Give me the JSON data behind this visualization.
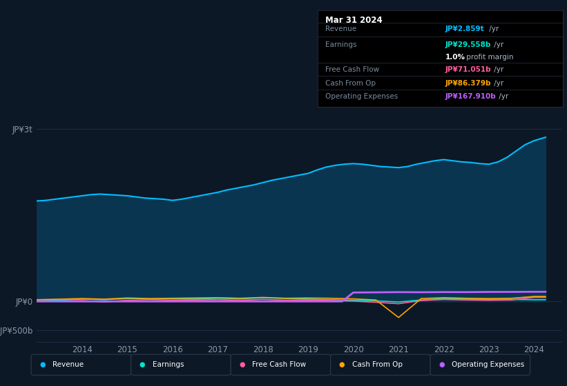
{
  "background_color": "#0d1827",
  "plot_bg_color": "#0d1827",
  "title_box": {
    "date": "Mar 31 2024",
    "rows": [
      {
        "label": "Revenue",
        "value": "JP¥2.859t",
        "suffix": " /yr",
        "value_color": "#00bfff"
      },
      {
        "label": "Earnings",
        "value": "JP¥29.558b",
        "suffix": " /yr",
        "value_color": "#00e5cc"
      },
      {
        "label": "",
        "value": "1.0%",
        "suffix": " profit margin",
        "value_color": "#ffffff"
      },
      {
        "label": "Free Cash Flow",
        "value": "JP¥71.051b",
        "suffix": " /yr",
        "value_color": "#ff5fa0"
      },
      {
        "label": "Cash From Op",
        "value": "JP¥86.379b",
        "suffix": " /yr",
        "value_color": "#ffa500"
      },
      {
        "label": "Operating Expenses",
        "value": "JP¥167.910b",
        "suffix": " /yr",
        "value_color": "#bf5fff"
      }
    ]
  },
  "ytick_labels": [
    "JP¥3t",
    "JP¥0",
    "-JP¥500b"
  ],
  "ytick_values": [
    3000000000000,
    0,
    -500000000000
  ],
  "ylim_min": -700000000000,
  "ylim_max": 3300000000000,
  "xlim_min": 2013.0,
  "xlim_max": 2024.6,
  "xticks": [
    2014,
    2015,
    2016,
    2017,
    2018,
    2019,
    2020,
    2021,
    2022,
    2023,
    2024
  ],
  "legend": [
    {
      "label": "Revenue",
      "color": "#00bfff"
    },
    {
      "label": "Earnings",
      "color": "#00e5cc"
    },
    {
      "label": "Free Cash Flow",
      "color": "#ff5fa0"
    },
    {
      "label": "Cash From Op",
      "color": "#ffa500"
    },
    {
      "label": "Operating Expenses",
      "color": "#bf5fff"
    }
  ],
  "revenue_x": [
    2013.0,
    2013.2,
    2013.4,
    2013.6,
    2013.8,
    2014.0,
    2014.2,
    2014.4,
    2014.6,
    2014.8,
    2015.0,
    2015.2,
    2015.4,
    2015.6,
    2015.8,
    2016.0,
    2016.2,
    2016.4,
    2016.6,
    2016.8,
    2017.0,
    2017.2,
    2017.4,
    2017.6,
    2017.8,
    2018.0,
    2018.2,
    2018.4,
    2018.6,
    2018.8,
    2019.0,
    2019.2,
    2019.4,
    2019.6,
    2019.8,
    2020.0,
    2020.2,
    2020.4,
    2020.6,
    2020.8,
    2021.0,
    2021.2,
    2021.4,
    2021.6,
    2021.8,
    2022.0,
    2022.2,
    2022.4,
    2022.6,
    2022.8,
    2023.0,
    2023.2,
    2023.4,
    2023.6,
    2023.8,
    2024.0,
    2024.25
  ],
  "revenue_y": [
    1750000000000,
    1760000000000,
    1780000000000,
    1800000000000,
    1820000000000,
    1840000000000,
    1860000000000,
    1870000000000,
    1860000000000,
    1850000000000,
    1840000000000,
    1820000000000,
    1800000000000,
    1790000000000,
    1780000000000,
    1760000000000,
    1780000000000,
    1810000000000,
    1840000000000,
    1870000000000,
    1900000000000,
    1940000000000,
    1970000000000,
    2000000000000,
    2030000000000,
    2070000000000,
    2110000000000,
    2140000000000,
    2170000000000,
    2200000000000,
    2230000000000,
    2290000000000,
    2340000000000,
    2370000000000,
    2390000000000,
    2400000000000,
    2390000000000,
    2370000000000,
    2350000000000,
    2340000000000,
    2330000000000,
    2350000000000,
    2390000000000,
    2420000000000,
    2450000000000,
    2470000000000,
    2450000000000,
    2430000000000,
    2420000000000,
    2400000000000,
    2390000000000,
    2430000000000,
    2510000000000,
    2620000000000,
    2730000000000,
    2800000000000,
    2859000000000
  ],
  "earnings_x": [
    2013.0,
    2013.5,
    2014.0,
    2014.5,
    2015.0,
    2015.5,
    2016.0,
    2016.5,
    2017.0,
    2017.5,
    2018.0,
    2018.5,
    2019.0,
    2019.5,
    2020.0,
    2020.5,
    2021.0,
    2021.5,
    2022.0,
    2022.5,
    2023.0,
    2023.5,
    2024.0,
    2024.25
  ],
  "earnings_y": [
    30000000000,
    20000000000,
    40000000000,
    30000000000,
    50000000000,
    35000000000,
    45000000000,
    40000000000,
    55000000000,
    45000000000,
    65000000000,
    50000000000,
    40000000000,
    30000000000,
    20000000000,
    10000000000,
    -10000000000,
    25000000000,
    50000000000,
    40000000000,
    30000000000,
    35000000000,
    29558000000,
    29558000000
  ],
  "fcf_x": [
    2013.0,
    2013.5,
    2014.0,
    2014.5,
    2015.0,
    2015.5,
    2016.0,
    2016.5,
    2017.0,
    2017.5,
    2018.0,
    2018.5,
    2019.0,
    2019.5,
    2020.0,
    2020.5,
    2021.0,
    2021.5,
    2022.0,
    2022.5,
    2023.0,
    2023.5,
    2024.0,
    2024.25
  ],
  "fcf_y": [
    10000000000,
    5000000000,
    15000000000,
    -10000000000,
    20000000000,
    10000000000,
    20000000000,
    25000000000,
    30000000000,
    20000000000,
    35000000000,
    20000000000,
    25000000000,
    15000000000,
    5000000000,
    -15000000000,
    -40000000000,
    15000000000,
    35000000000,
    25000000000,
    20000000000,
    25000000000,
    71051000000,
    71051000000
  ],
  "cashop_x": [
    2013.0,
    2013.5,
    2014.0,
    2014.5,
    2015.0,
    2015.5,
    2016.0,
    2016.5,
    2017.0,
    2017.5,
    2018.0,
    2018.5,
    2019.0,
    2019.5,
    2020.0,
    2020.5,
    2021.0,
    2021.5,
    2022.0,
    2022.5,
    2023.0,
    2023.5,
    2024.0,
    2024.25
  ],
  "cashop_y": [
    30000000000,
    40000000000,
    50000000000,
    40000000000,
    60000000000,
    50000000000,
    55000000000,
    60000000000,
    65000000000,
    55000000000,
    70000000000,
    55000000000,
    60000000000,
    55000000000,
    45000000000,
    25000000000,
    -280000000000,
    50000000000,
    65000000000,
    55000000000,
    50000000000,
    55000000000,
    86379000000,
    86379000000
  ],
  "opex_x": [
    2013.0,
    2013.5,
    2014.0,
    2014.5,
    2015.0,
    2015.5,
    2016.0,
    2016.5,
    2017.0,
    2017.5,
    2018.0,
    2018.5,
    2019.0,
    2019.5,
    2019.75,
    2020.0,
    2020.5,
    2021.0,
    2021.5,
    2022.0,
    2022.5,
    2023.0,
    2023.5,
    2024.0,
    2024.25
  ],
  "opex_y": [
    0,
    0,
    0,
    0,
    0,
    0,
    0,
    0,
    0,
    0,
    0,
    0,
    0,
    0,
    0,
    155000000000,
    158000000000,
    162000000000,
    160000000000,
    163000000000,
    162000000000,
    165000000000,
    166000000000,
    167910000000,
    167910000000
  ],
  "grid_color": "#1a2f47",
  "tick_color": "#8899aa",
  "legend_bg": "#0d1827",
  "legend_border": "#2a3a4a"
}
